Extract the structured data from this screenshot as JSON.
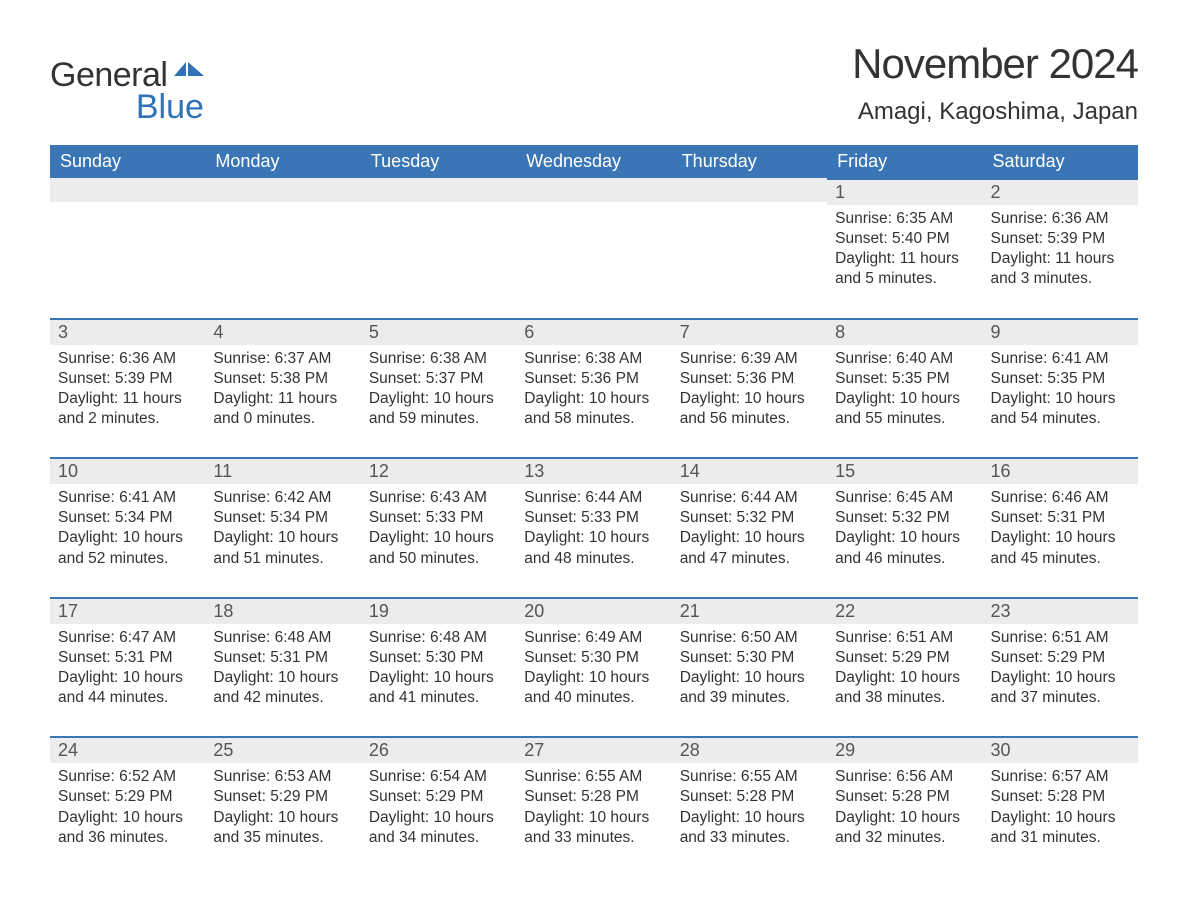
{
  "logo": {
    "word1": "General",
    "word2": "Blue"
  },
  "header": {
    "month_title": "November 2024",
    "location": "Amagi, Kagoshima, Japan"
  },
  "styling": {
    "header_bg": "#3a76b5",
    "header_text": "#ffffff",
    "daybar_bg": "#ececec",
    "daybar_border": "#3a76b5",
    "body_text": "#333333",
    "page_bg": "#ffffff",
    "logo_blue": "#2f72b8",
    "title_fontsize": 42,
    "location_fontsize": 24,
    "dayheader_fontsize": 18,
    "cell_fontsize": 15.5
  },
  "day_headers": [
    "Sunday",
    "Monday",
    "Tuesday",
    "Wednesday",
    "Thursday",
    "Friday",
    "Saturday"
  ],
  "weeks": [
    [
      null,
      null,
      null,
      null,
      null,
      {
        "n": "1",
        "sr": "Sunrise: 6:35 AM",
        "ss": "Sunset: 5:40 PM",
        "dl": "Daylight: 11 hours and 5 minutes."
      },
      {
        "n": "2",
        "sr": "Sunrise: 6:36 AM",
        "ss": "Sunset: 5:39 PM",
        "dl": "Daylight: 11 hours and 3 minutes."
      }
    ],
    [
      {
        "n": "3",
        "sr": "Sunrise: 6:36 AM",
        "ss": "Sunset: 5:39 PM",
        "dl": "Daylight: 11 hours and 2 minutes."
      },
      {
        "n": "4",
        "sr": "Sunrise: 6:37 AM",
        "ss": "Sunset: 5:38 PM",
        "dl": "Daylight: 11 hours and 0 minutes."
      },
      {
        "n": "5",
        "sr": "Sunrise: 6:38 AM",
        "ss": "Sunset: 5:37 PM",
        "dl": "Daylight: 10 hours and 59 minutes."
      },
      {
        "n": "6",
        "sr": "Sunrise: 6:38 AM",
        "ss": "Sunset: 5:36 PM",
        "dl": "Daylight: 10 hours and 58 minutes."
      },
      {
        "n": "7",
        "sr": "Sunrise: 6:39 AM",
        "ss": "Sunset: 5:36 PM",
        "dl": "Daylight: 10 hours and 56 minutes."
      },
      {
        "n": "8",
        "sr": "Sunrise: 6:40 AM",
        "ss": "Sunset: 5:35 PM",
        "dl": "Daylight: 10 hours and 55 minutes."
      },
      {
        "n": "9",
        "sr": "Sunrise: 6:41 AM",
        "ss": "Sunset: 5:35 PM",
        "dl": "Daylight: 10 hours and 54 minutes."
      }
    ],
    [
      {
        "n": "10",
        "sr": "Sunrise: 6:41 AM",
        "ss": "Sunset: 5:34 PM",
        "dl": "Daylight: 10 hours and 52 minutes."
      },
      {
        "n": "11",
        "sr": "Sunrise: 6:42 AM",
        "ss": "Sunset: 5:34 PM",
        "dl": "Daylight: 10 hours and 51 minutes."
      },
      {
        "n": "12",
        "sr": "Sunrise: 6:43 AM",
        "ss": "Sunset: 5:33 PM",
        "dl": "Daylight: 10 hours and 50 minutes."
      },
      {
        "n": "13",
        "sr": "Sunrise: 6:44 AM",
        "ss": "Sunset: 5:33 PM",
        "dl": "Daylight: 10 hours and 48 minutes."
      },
      {
        "n": "14",
        "sr": "Sunrise: 6:44 AM",
        "ss": "Sunset: 5:32 PM",
        "dl": "Daylight: 10 hours and 47 minutes."
      },
      {
        "n": "15",
        "sr": "Sunrise: 6:45 AM",
        "ss": "Sunset: 5:32 PM",
        "dl": "Daylight: 10 hours and 46 minutes."
      },
      {
        "n": "16",
        "sr": "Sunrise: 6:46 AM",
        "ss": "Sunset: 5:31 PM",
        "dl": "Daylight: 10 hours and 45 minutes."
      }
    ],
    [
      {
        "n": "17",
        "sr": "Sunrise: 6:47 AM",
        "ss": "Sunset: 5:31 PM",
        "dl": "Daylight: 10 hours and 44 minutes."
      },
      {
        "n": "18",
        "sr": "Sunrise: 6:48 AM",
        "ss": "Sunset: 5:31 PM",
        "dl": "Daylight: 10 hours and 42 minutes."
      },
      {
        "n": "19",
        "sr": "Sunrise: 6:48 AM",
        "ss": "Sunset: 5:30 PM",
        "dl": "Daylight: 10 hours and 41 minutes."
      },
      {
        "n": "20",
        "sr": "Sunrise: 6:49 AM",
        "ss": "Sunset: 5:30 PM",
        "dl": "Daylight: 10 hours and 40 minutes."
      },
      {
        "n": "21",
        "sr": "Sunrise: 6:50 AM",
        "ss": "Sunset: 5:30 PM",
        "dl": "Daylight: 10 hours and 39 minutes."
      },
      {
        "n": "22",
        "sr": "Sunrise: 6:51 AM",
        "ss": "Sunset: 5:29 PM",
        "dl": "Daylight: 10 hours and 38 minutes."
      },
      {
        "n": "23",
        "sr": "Sunrise: 6:51 AM",
        "ss": "Sunset: 5:29 PM",
        "dl": "Daylight: 10 hours and 37 minutes."
      }
    ],
    [
      {
        "n": "24",
        "sr": "Sunrise: 6:52 AM",
        "ss": "Sunset: 5:29 PM",
        "dl": "Daylight: 10 hours and 36 minutes."
      },
      {
        "n": "25",
        "sr": "Sunrise: 6:53 AM",
        "ss": "Sunset: 5:29 PM",
        "dl": "Daylight: 10 hours and 35 minutes."
      },
      {
        "n": "26",
        "sr": "Sunrise: 6:54 AM",
        "ss": "Sunset: 5:29 PM",
        "dl": "Daylight: 10 hours and 34 minutes."
      },
      {
        "n": "27",
        "sr": "Sunrise: 6:55 AM",
        "ss": "Sunset: 5:28 PM",
        "dl": "Daylight: 10 hours and 33 minutes."
      },
      {
        "n": "28",
        "sr": "Sunrise: 6:55 AM",
        "ss": "Sunset: 5:28 PM",
        "dl": "Daylight: 10 hours and 33 minutes."
      },
      {
        "n": "29",
        "sr": "Sunrise: 6:56 AM",
        "ss": "Sunset: 5:28 PM",
        "dl": "Daylight: 10 hours and 32 minutes."
      },
      {
        "n": "30",
        "sr": "Sunrise: 6:57 AM",
        "ss": "Sunset: 5:28 PM",
        "dl": "Daylight: 10 hours and 31 minutes."
      }
    ]
  ]
}
